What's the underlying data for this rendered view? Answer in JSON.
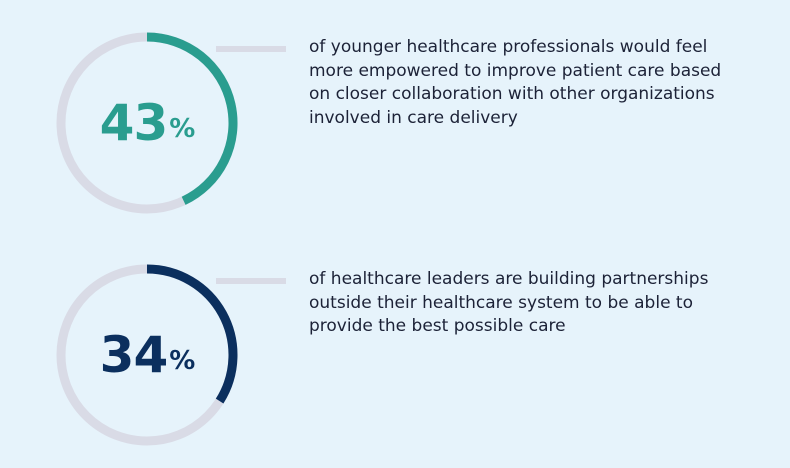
{
  "chart_data": [
    {
      "type": "donut",
      "value": 43,
      "unit": "%",
      "description": "of younger healthcare professionals would feel more empowered to improve patient care based on closer collaboration with other organizations involved in care delivery",
      "color": "#2a9d8f",
      "track_color": "#d9dbe6"
    },
    {
      "type": "donut",
      "value": 34,
      "unit": "%",
      "description": "of healthcare leaders are building partnerships outside their healthcare system to be able to provide the best possible care",
      "color": "#0b2f5e",
      "track_color": "#d9dbe6"
    }
  ]
}
